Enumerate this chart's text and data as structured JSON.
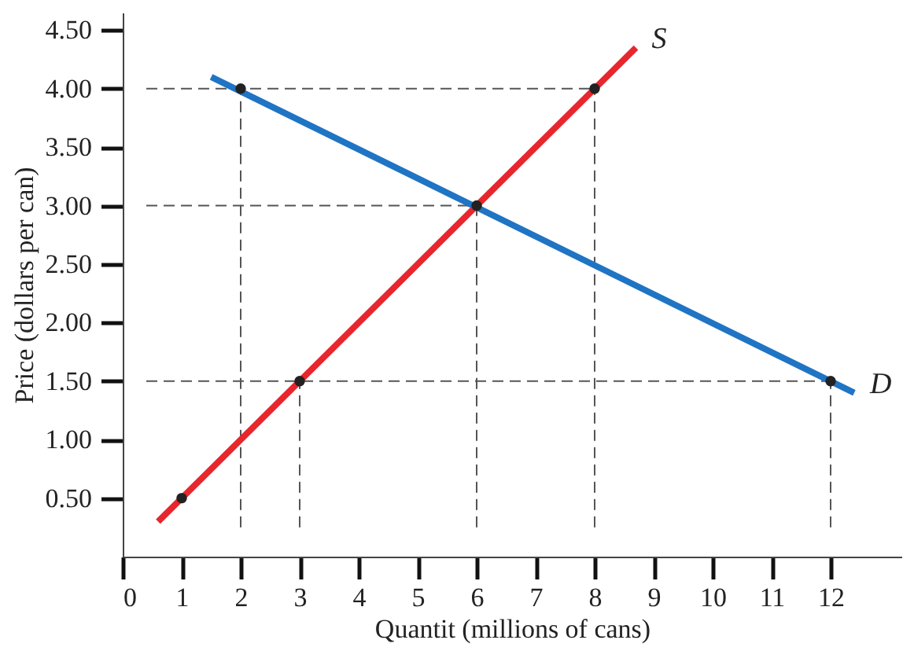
{
  "chart_data": {
    "type": "line",
    "xlabel": "Quantit (millions of cans)",
    "ylabel": "Price (dollars per can)",
    "xticks": [
      {
        "value": 0,
        "label": "0"
      },
      1,
      2,
      3,
      4,
      5,
      6,
      7,
      8,
      9,
      10,
      11,
      12
    ],
    "yticks": [
      {
        "value": 0.5,
        "label": "0.50"
      },
      {
        "value": 1,
        "label": "1.00"
      },
      {
        "value": 1.5,
        "label": "1.50"
      },
      {
        "value": 2,
        "label": "2.00"
      },
      {
        "value": 2.5,
        "label": "2.50"
      },
      {
        "value": 3,
        "label": "3.00"
      },
      {
        "value": 3.5,
        "label": "3.50"
      },
      {
        "value": 4,
        "label": "4.00"
      },
      {
        "value": 4.5,
        "label": "4.50"
      }
    ],
    "xlim": [
      0,
      13.2
    ],
    "ylim": [
      0,
      4.65
    ],
    "grid": false,
    "series": [
      {
        "line_style": "dashed",
        "color": "#555555",
        "x": [
          0.4,
          8
        ],
        "values": [
          4,
          4
        ]
      },
      {
        "line_style": "dashed",
        "color": "#555555",
        "x": [
          0.4,
          6
        ],
        "values": [
          3,
          3
        ]
      },
      {
        "line_style": "dashed",
        "color": "#555555",
        "x": [
          0.4,
          12
        ],
        "values": [
          1.5,
          1.5
        ]
      },
      {
        "line_style": "dashed",
        "color": "#555555",
        "x": [
          2,
          2
        ],
        "values": [
          0.25,
          4
        ]
      },
      {
        "line_style": "dashed",
        "color": "#555555",
        "x": [
          3,
          3
        ],
        "values": [
          0.25,
          1.5
        ]
      },
      {
        "line_style": "dashed",
        "color": "#555555",
        "x": [
          6,
          6
        ],
        "values": [
          0.25,
          3
        ]
      },
      {
        "line_style": "dashed",
        "color": "#555555",
        "x": [
          8,
          8
        ],
        "values": [
          0.25,
          4
        ]
      },
      {
        "line_style": "dashed",
        "color": "#555555",
        "x": [
          12,
          12
        ],
        "values": [
          0.25,
          1.5
        ]
      },
      {
        "name": "S",
        "line_style": "solid",
        "color": "#e8262d",
        "x": [
          0.6,
          8.7
        ],
        "values": [
          0.3,
          4.35
        ]
      },
      {
        "name": "D",
        "line_style": "solid",
        "color": "#1f74c4",
        "x": [
          1.5,
          12.4
        ],
        "values": [
          4.1,
          1.4
        ]
      },
      {
        "type": "scatter",
        "marker": "circle",
        "color": "#222222",
        "x": [
          1,
          3,
          6,
          8,
          2,
          12
        ],
        "values": [
          0.5,
          1.5,
          3,
          4,
          4,
          1.5
        ]
      }
    ]
  }
}
